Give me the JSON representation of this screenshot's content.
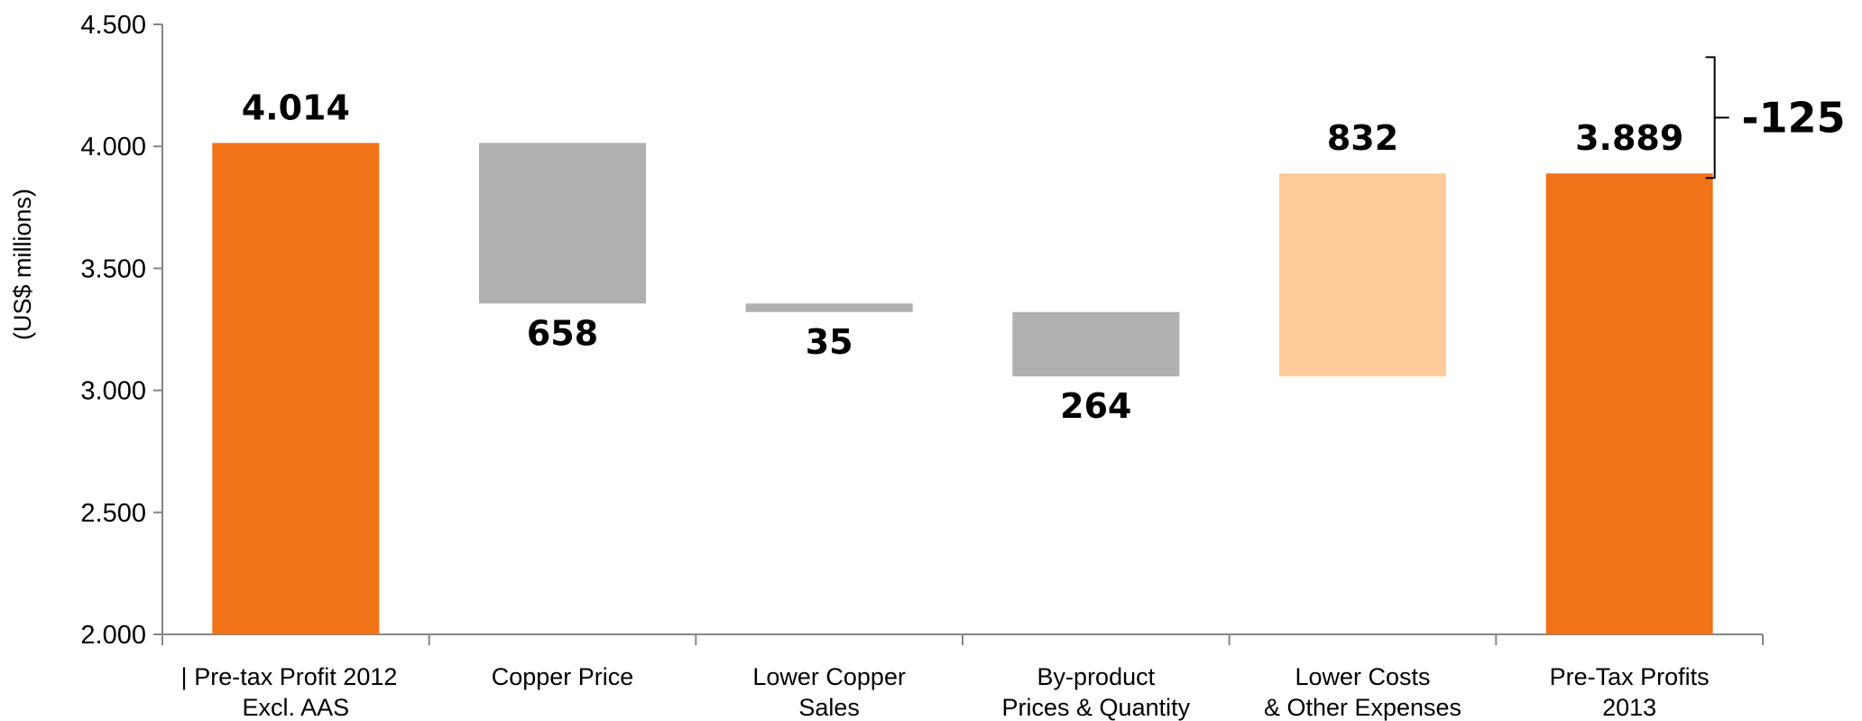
{
  "chart_data": {
    "type": "bar",
    "subtype": "waterfall",
    "ylabel": "(US$ millions)",
    "ylim": [
      2000,
      4500
    ],
    "yticks": [
      "2.000",
      "2.500",
      "3.000",
      "3.500",
      "4.000",
      "4.500"
    ],
    "ytick_values": [
      2000,
      2500,
      3000,
      3500,
      4000,
      4500
    ],
    "categories": [
      [
        "Pre-tax Profit 2012",
        "Excl. AAS"
      ],
      [
        "Copper Price"
      ],
      [
        "Lower Copper",
        "Sales"
      ],
      [
        "By-product",
        "Prices & Quantity"
      ],
      [
        "Lower Costs",
        "& Other Expenses"
      ],
      [
        "Pre-Tax Profits",
        "2013"
      ]
    ],
    "first_category_marker": "|",
    "bars": [
      {
        "kind": "total",
        "start": 2000,
        "end": 4014,
        "label": "4.014",
        "color": "#F07318"
      },
      {
        "kind": "decrease",
        "start": 4014,
        "end": 3356,
        "label": "658",
        "color": "#B0B0B0"
      },
      {
        "kind": "decrease",
        "start": 3356,
        "end": 3321,
        "label": "35",
        "color": "#B0B0B0"
      },
      {
        "kind": "decrease",
        "start": 3321,
        "end": 3057,
        "label": "264",
        "color": "#B0B0B0"
      },
      {
        "kind": "increase",
        "start": 3057,
        "end": 3889,
        "label": "832",
        "color": "#FFCB99"
      },
      {
        "kind": "total",
        "start": 2000,
        "end": 3889,
        "label": "3.889",
        "color": "#F07318"
      }
    ],
    "change_annotation": {
      "label": "-125",
      "from": 4014,
      "to": 3889
    },
    "grid": false
  }
}
